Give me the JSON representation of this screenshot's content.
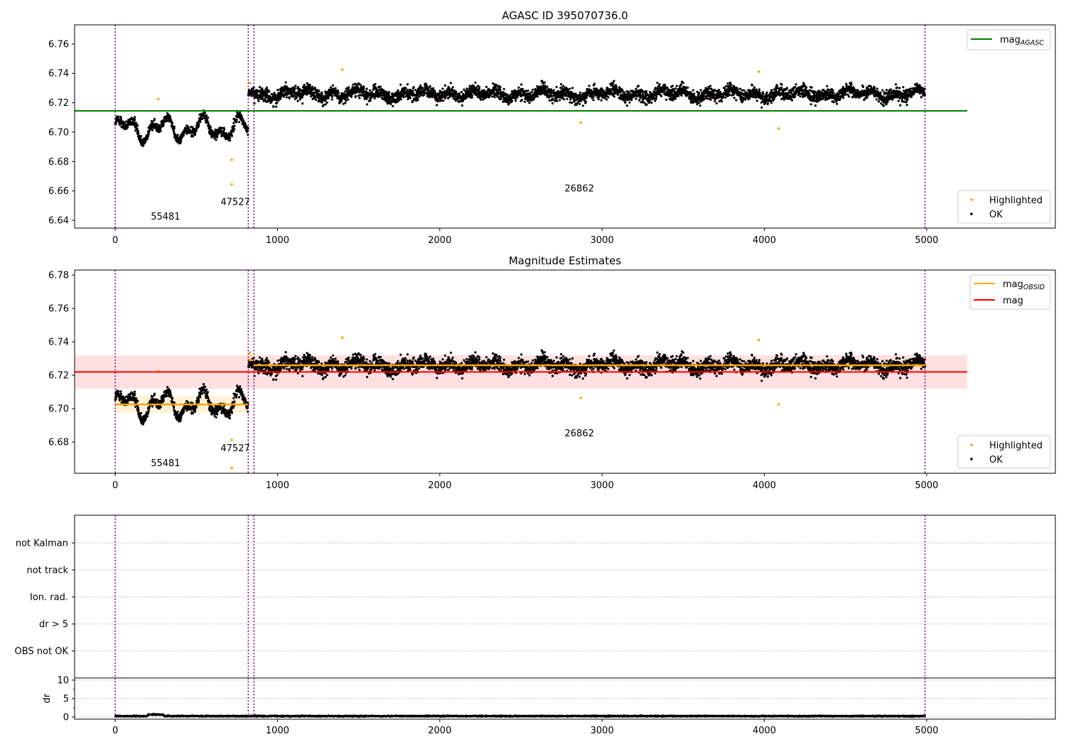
{
  "chart_data": [
    {
      "type": "scatter",
      "title": "AGASC ID 395070736.0",
      "xlim": [
        -250,
        5793
      ],
      "ylim": [
        6.6347,
        6.773
      ],
      "xticks": [
        0,
        1000,
        2000,
        3000,
        4000,
        5000
      ],
      "yticks": [
        6.64,
        6.66,
        6.68,
        6.7,
        6.72,
        6.74,
        6.76
      ],
      "ytick_labels": [
        "6.64",
        "6.66",
        "6.68",
        "6.70",
        "6.72",
        "6.74",
        "6.76"
      ],
      "mag_agasc": 6.7145,
      "mag_agasc_xrange": [
        -250,
        5250
      ],
      "legend_upper": {
        "label": "mag",
        "sub": "AGASC",
        "color": "#008000"
      },
      "legend_lower": [
        {
          "label": "Highlighted",
          "color": "#ffa500"
        },
        {
          "label": "OK",
          "color": "#000000"
        }
      ],
      "obsid_labels": [
        {
          "text": "55481",
          "x": 310,
          "y": 6.6405
        },
        {
          "text": "47527",
          "x": 740,
          "y": 6.6505
        },
        {
          "text": "26862",
          "x": 2860,
          "y": 6.6595
        }
      ]
    },
    {
      "type": "scatter",
      "title": "Magnitude Estimates",
      "xlim": [
        -250,
        5793
      ],
      "ylim": [
        6.6613,
        6.783
      ],
      "xticks": [
        0,
        1000,
        2000,
        3000,
        4000,
        5000
      ],
      "yticks": [
        6.68,
        6.7,
        6.72,
        6.74,
        6.76,
        6.78
      ],
      "ytick_labels": [
        "6.68",
        "6.70",
        "6.72",
        "6.74",
        "6.76",
        "6.78"
      ],
      "mag": 6.722,
      "mag_band": [
        6.712,
        6.732
      ],
      "mag_xrange": [
        -250,
        5250
      ],
      "mag_obsid": [
        {
          "x0": 0,
          "x1": 820,
          "mean": 6.7025,
          "band": [
            6.6975,
            6.7075
          ]
        },
        {
          "x0": 820,
          "x1": 855,
          "mean": 6.729,
          "band": [
            6.725,
            6.733
          ]
        },
        {
          "x0": 855,
          "x1": 4990,
          "mean": 6.726,
          "band": [
            6.7245,
            6.7275
          ]
        }
      ],
      "legend_upper": [
        {
          "label": "mag",
          "sub": "OBSID",
          "color": "#ffa500"
        },
        {
          "label": "mag",
          "sub": "",
          "color": "#ff0000"
        }
      ],
      "legend_lower": [
        {
          "label": "Highlighted",
          "color": "#ffa500"
        },
        {
          "label": "OK",
          "color": "#000000"
        }
      ],
      "obsid_labels": [
        {
          "text": "55481",
          "x": 310,
          "y": 6.6655
        },
        {
          "text": "47527",
          "x": 740,
          "y": 6.6745
        },
        {
          "text": "26862",
          "x": 2860,
          "y": 6.6835
        }
      ]
    },
    {
      "type": "table",
      "title": "",
      "categories": [
        "OBS not OK",
        "dr > 5",
        "Ion. rad.",
        "not track",
        "not Kalman"
      ],
      "flags": []
    },
    {
      "type": "scatter",
      "ylabel": "dr",
      "ylim": [
        -0.58,
        10.58
      ],
      "yticks": [
        0,
        5,
        10
      ],
      "ytick_labels": [
        "0",
        "5",
        "10"
      ],
      "xticks": [
        0,
        1000,
        2000,
        3000,
        4000,
        5000
      ],
      "xtick_labels": [
        "0",
        "1000",
        "2000",
        "3000",
        "4000",
        "5000"
      ],
      "typical_dr": 0.25
    }
  ],
  "obsid_boundaries": [
    0,
    820,
    855,
    4990
  ],
  "segments": [
    {
      "obsid": "55481",
      "x0": 0,
      "x1": 820,
      "mean": 6.7025,
      "scatter": 0.004
    },
    {
      "obsid": "47527",
      "x0": 820,
      "x1": 855,
      "mean": 6.729,
      "scatter": 0.004
    },
    {
      "obsid": "26862",
      "x0": 855,
      "x1": 4990,
      "mean": 6.726,
      "scatter": 0.0055
    }
  ],
  "highlighted_points": [
    {
      "x": 265,
      "y": 6.7225
    },
    {
      "x": 718,
      "y": 6.6812
    },
    {
      "x": 718,
      "y": 6.6645
    },
    {
      "x": 830,
      "y": 6.7335
    },
    {
      "x": 1400,
      "y": 6.7425
    },
    {
      "x": 2868,
      "y": 6.7065
    },
    {
      "x": 3965,
      "y": 6.7412
    },
    {
      "x": 4088,
      "y": 6.7025
    }
  ],
  "colors": {
    "ok": "#000000",
    "highlighted": "#ffa500",
    "boundary": "#800080",
    "agasc": "#008000",
    "mag": "#ff0000",
    "obsid": "#ffa500"
  }
}
